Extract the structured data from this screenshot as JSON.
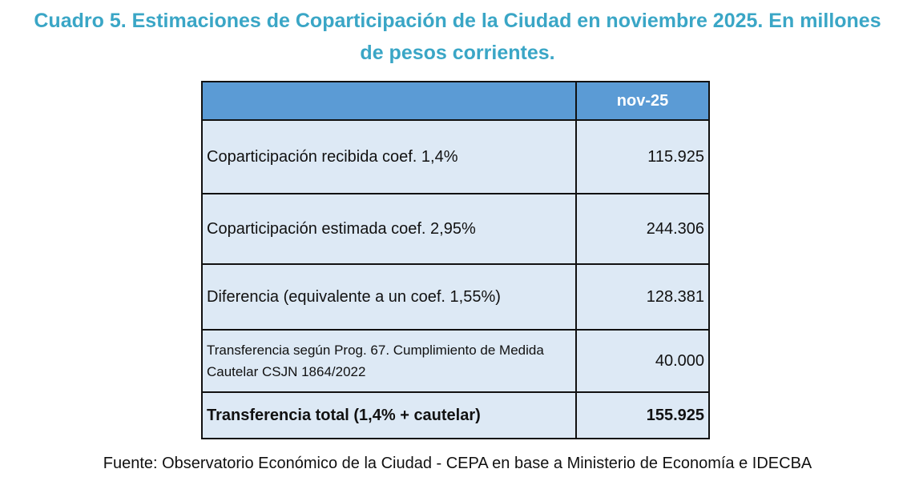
{
  "title": "Cuadro 5. Estimaciones de Coparticipación de la Ciudad en noviembre 2025. En millones de pesos corrientes.",
  "table": {
    "header": [
      "",
      "nov-25"
    ],
    "rows": [
      [
        "Coparticipación recibida coef. 1,4%",
        "115.925"
      ],
      [
        "Coparticipación estimada coef. 2,95%",
        "244.306"
      ],
      [
        "Diferencia (equivalente a un coef. 1,55%)",
        "128.381"
      ],
      [
        "Transferencia según Prog. 67. Cumplimiento de Medida Cautelar CSJN 1864/2022",
        "40.000"
      ],
      [
        "Transferencia total (1,4%  + cautelar)",
        "155.925"
      ]
    ]
  },
  "source": "Fuente: Observatorio Económico de la Ciudad - CEPA en base a Ministerio de Economía e IDECBA"
}
